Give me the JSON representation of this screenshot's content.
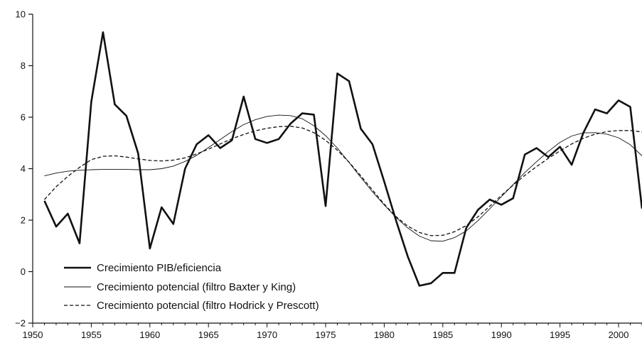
{
  "chart_data": {
    "type": "line",
    "xlim": [
      1950,
      2002
    ],
    "ylim": [
      -2,
      10
    ],
    "x_ticks": [
      1950,
      1955,
      1960,
      1965,
      1970,
      1975,
      1980,
      1985,
      1990,
      1995,
      2000
    ],
    "y_ticks": [
      -2,
      0,
      2,
      4,
      6,
      8,
      10
    ],
    "grid": false,
    "legend_position": "bottom-left",
    "x": [
      1951,
      1952,
      1953,
      1954,
      1955,
      1956,
      1957,
      1958,
      1959,
      1960,
      1961,
      1962,
      1963,
      1964,
      1965,
      1966,
      1967,
      1968,
      1969,
      1970,
      1971,
      1972,
      1973,
      1974,
      1975,
      1976,
      1977,
      1978,
      1979,
      1980,
      1981,
      1982,
      1983,
      1984,
      1985,
      1986,
      1987,
      1988,
      1989,
      1990,
      1991,
      1992,
      1993,
      1994,
      1995,
      1996,
      1997,
      1998,
      1999,
      2000,
      2001,
      2002
    ],
    "series": [
      {
        "name": "Crecimiento PIB/eficiencia",
        "style": "solid-thick",
        "values": [
          2.75,
          1.75,
          2.25,
          1.1,
          6.6,
          9.3,
          6.5,
          6.05,
          4.6,
          0.9,
          2.5,
          1.85,
          4.0,
          4.95,
          5.3,
          4.8,
          5.1,
          6.8,
          5.15,
          5.0,
          5.15,
          5.75,
          6.15,
          6.1,
          2.55,
          7.7,
          7.4,
          5.55,
          4.95,
          3.5,
          2.0,
          0.6,
          -0.55,
          -0.45,
          -0.05,
          -0.05,
          1.7,
          2.4,
          2.8,
          2.6,
          2.85,
          4.55,
          4.8,
          4.45,
          4.85,
          4.15,
          5.4,
          6.3,
          6.15,
          6.65,
          6.4,
          2.45
        ]
      },
      {
        "name": "Crecimiento potencial (filtro Baxter y King)",
        "style": "solid-thin",
        "values": [
          3.72,
          3.83,
          3.9,
          3.94,
          3.96,
          3.97,
          3.97,
          3.97,
          3.96,
          3.96,
          4.0,
          4.1,
          4.28,
          4.52,
          4.82,
          5.13,
          5.44,
          5.71,
          5.9,
          6.03,
          6.08,
          6.06,
          5.94,
          5.67,
          5.28,
          4.8,
          4.24,
          3.66,
          3.1,
          2.59,
          2.11,
          1.7,
          1.38,
          1.2,
          1.18,
          1.32,
          1.58,
          1.98,
          2.44,
          2.91,
          3.38,
          3.85,
          4.27,
          4.67,
          5.02,
          5.27,
          5.39,
          5.4,
          5.34,
          5.2,
          4.93,
          4.5
        ]
      },
      {
        "name": "Crecimiento potencial (filtro Hodrick y Prescott)",
        "style": "dashed",
        "values": [
          2.8,
          3.3,
          3.7,
          4.05,
          4.35,
          4.48,
          4.5,
          4.45,
          4.38,
          4.32,
          4.3,
          4.33,
          4.42,
          4.57,
          4.76,
          4.96,
          5.16,
          5.33,
          5.47,
          5.57,
          5.63,
          5.65,
          5.58,
          5.4,
          5.1,
          4.72,
          4.25,
          3.72,
          3.17,
          2.62,
          2.14,
          1.77,
          1.52,
          1.4,
          1.41,
          1.55,
          1.79,
          2.13,
          2.54,
          2.96,
          3.36,
          3.74,
          4.08,
          4.4,
          4.69,
          4.96,
          5.18,
          5.34,
          5.44,
          5.48,
          5.48,
          5.43
        ]
      }
    ]
  }
}
